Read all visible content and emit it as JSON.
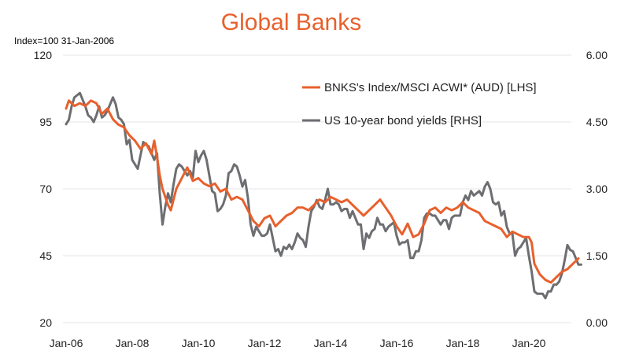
{
  "chart_data": {
    "type": "line",
    "title": "Global Banks",
    "note": "Index=100 31-Jan-2006",
    "colors": {
      "title": "#e8602c",
      "series_lhs": "#e8602c",
      "series_rhs": "#6d6e71",
      "grid": "#e6e6e6"
    },
    "grid": true,
    "legend_position": "top-right",
    "x_ticks": [
      "Jan-06",
      "Jan-08",
      "Jan-10",
      "Jan-12",
      "Jan-14",
      "Jan-16",
      "Jan-18",
      "Jan-20"
    ],
    "xlim": [
      "2006-01",
      "2021-08"
    ],
    "y_left": {
      "ylim": [
        20,
        120
      ],
      "ticks": [
        "20",
        "45",
        "70",
        "95",
        "120"
      ]
    },
    "y_right": {
      "ylim": [
        0,
        6
      ],
      "ticks": [
        "0.00",
        "1.50",
        "3.00",
        "4.50",
        "6.00"
      ]
    },
    "series": [
      {
        "name": "BNKS's Index/MSCI ACWI* (AUD) [LHS]",
        "axis": "left",
        "points": [
          [
            "2006-01",
            100
          ],
          [
            "2006-02",
            103
          ],
          [
            "2006-04",
            101
          ],
          [
            "2006-06",
            102
          ],
          [
            "2006-08",
            101
          ],
          [
            "2006-10",
            103
          ],
          [
            "2006-12",
            102
          ],
          [
            "2007-02",
            98
          ],
          [
            "2007-04",
            100
          ],
          [
            "2007-06",
            96
          ],
          [
            "2007-08",
            94
          ],
          [
            "2007-10",
            93
          ],
          [
            "2007-12",
            90
          ],
          [
            "2008-02",
            88
          ],
          [
            "2008-04",
            85
          ],
          [
            "2008-06",
            87
          ],
          [
            "2008-08",
            83
          ],
          [
            "2008-09",
            88
          ],
          [
            "2008-10",
            82
          ],
          [
            "2008-11",
            75
          ],
          [
            "2008-12",
            70
          ],
          [
            "2009-02",
            64
          ],
          [
            "2009-03",
            62
          ],
          [
            "2009-05",
            70
          ],
          [
            "2009-07",
            74
          ],
          [
            "2009-09",
            78
          ],
          [
            "2009-11",
            73
          ],
          [
            "2010-01",
            74
          ],
          [
            "2010-03",
            72
          ],
          [
            "2010-05",
            71
          ],
          [
            "2010-07",
            72
          ],
          [
            "2010-09",
            69
          ],
          [
            "2010-11",
            70
          ],
          [
            "2011-01",
            66
          ],
          [
            "2011-03",
            67
          ],
          [
            "2011-05",
            66
          ],
          [
            "2011-07",
            62
          ],
          [
            "2011-09",
            58
          ],
          [
            "2011-11",
            56
          ],
          [
            "2012-01",
            59
          ],
          [
            "2012-03",
            60
          ],
          [
            "2012-05",
            56
          ],
          [
            "2012-07",
            58
          ],
          [
            "2012-09",
            60
          ],
          [
            "2012-11",
            61
          ],
          [
            "2013-01",
            63
          ],
          [
            "2013-03",
            63
          ],
          [
            "2013-05",
            62
          ],
          [
            "2013-07",
            64
          ],
          [
            "2013-09",
            66
          ],
          [
            "2013-11",
            65
          ],
          [
            "2014-01",
            67
          ],
          [
            "2014-03",
            66
          ],
          [
            "2014-05",
            65
          ],
          [
            "2014-07",
            66
          ],
          [
            "2014-09",
            64
          ],
          [
            "2014-11",
            62
          ],
          [
            "2015-01",
            60
          ],
          [
            "2015-03",
            62
          ],
          [
            "2015-05",
            64
          ],
          [
            "2015-07",
            66
          ],
          [
            "2015-09",
            63
          ],
          [
            "2015-11",
            60
          ],
          [
            "2016-01",
            56
          ],
          [
            "2016-03",
            53
          ],
          [
            "2016-05",
            57
          ],
          [
            "2016-07",
            52
          ],
          [
            "2016-09",
            53
          ],
          [
            "2016-11",
            57
          ],
          [
            "2017-01",
            62
          ],
          [
            "2017-03",
            63
          ],
          [
            "2017-05",
            61
          ],
          [
            "2017-07",
            63
          ],
          [
            "2017-09",
            62
          ],
          [
            "2017-11",
            63
          ],
          [
            "2018-01",
            65
          ],
          [
            "2018-03",
            63
          ],
          [
            "2018-05",
            62
          ],
          [
            "2018-07",
            61
          ],
          [
            "2018-09",
            58
          ],
          [
            "2018-11",
            57
          ],
          [
            "2019-01",
            56
          ],
          [
            "2019-03",
            55
          ],
          [
            "2019-05",
            52
          ],
          [
            "2019-07",
            54
          ],
          [
            "2019-09",
            53
          ],
          [
            "2019-11",
            52
          ],
          [
            "2020-01",
            52
          ],
          [
            "2020-02",
            50
          ],
          [
            "2020-03",
            42
          ],
          [
            "2020-05",
            38
          ],
          [
            "2020-07",
            36
          ],
          [
            "2020-09",
            35
          ],
          [
            "2020-11",
            37
          ],
          [
            "2021-01",
            39
          ],
          [
            "2021-03",
            40
          ],
          [
            "2021-05",
            42
          ],
          [
            "2021-07",
            44
          ]
        ]
      },
      {
        "name": "US 10-year bond yields [RHS]",
        "axis": "right",
        "points": [
          [
            "2006-01",
            4.45
          ],
          [
            "2006-02",
            4.55
          ],
          [
            "2006-03",
            4.85
          ],
          [
            "2006-04",
            5.05
          ],
          [
            "2006-05",
            5.1
          ],
          [
            "2006-06",
            5.15
          ],
          [
            "2006-07",
            5.0
          ],
          [
            "2006-08",
            4.85
          ],
          [
            "2006-09",
            4.65
          ],
          [
            "2006-10",
            4.6
          ],
          [
            "2006-11",
            4.5
          ],
          [
            "2006-12",
            4.65
          ],
          [
            "2007-01",
            4.85
          ],
          [
            "2007-02",
            4.6
          ],
          [
            "2007-03",
            4.65
          ],
          [
            "2007-04",
            4.75
          ],
          [
            "2007-05",
            4.9
          ],
          [
            "2007-06",
            5.05
          ],
          [
            "2007-07",
            4.9
          ],
          [
            "2007-08",
            4.6
          ],
          [
            "2007-09",
            4.55
          ],
          [
            "2007-10",
            4.45
          ],
          [
            "2007-11",
            4.0
          ],
          [
            "2007-12",
            4.1
          ],
          [
            "2008-01",
            3.65
          ],
          [
            "2008-02",
            3.55
          ],
          [
            "2008-03",
            3.45
          ],
          [
            "2008-04",
            3.75
          ],
          [
            "2008-05",
            4.05
          ],
          [
            "2008-06",
            4.0
          ],
          [
            "2008-07",
            3.95
          ],
          [
            "2008-08",
            3.8
          ],
          [
            "2008-09",
            3.65
          ],
          [
            "2008-10",
            3.8
          ],
          [
            "2008-11",
            2.9
          ],
          [
            "2008-12",
            2.2
          ],
          [
            "2009-01",
            2.6
          ],
          [
            "2009-02",
            2.9
          ],
          [
            "2009-03",
            2.7
          ],
          [
            "2009-04",
            3.1
          ],
          [
            "2009-05",
            3.45
          ],
          [
            "2009-06",
            3.55
          ],
          [
            "2009-07",
            3.5
          ],
          [
            "2009-08",
            3.4
          ],
          [
            "2009-09",
            3.3
          ],
          [
            "2009-10",
            3.4
          ],
          [
            "2009-11",
            3.25
          ],
          [
            "2009-12",
            3.85
          ],
          [
            "2010-01",
            3.6
          ],
          [
            "2010-02",
            3.75
          ],
          [
            "2010-03",
            3.85
          ],
          [
            "2010-04",
            3.65
          ],
          [
            "2010-05",
            3.3
          ],
          [
            "2010-06",
            2.95
          ],
          [
            "2010-07",
            2.9
          ],
          [
            "2010-08",
            2.5
          ],
          [
            "2010-09",
            2.55
          ],
          [
            "2010-10",
            2.65
          ],
          [
            "2010-11",
            2.85
          ],
          [
            "2010-12",
            3.35
          ],
          [
            "2011-01",
            3.4
          ],
          [
            "2011-02",
            3.55
          ],
          [
            "2011-03",
            3.5
          ],
          [
            "2011-04",
            3.3
          ],
          [
            "2011-05",
            3.05
          ],
          [
            "2011-06",
            3.2
          ],
          [
            "2011-07",
            2.8
          ],
          [
            "2011-08",
            2.2
          ],
          [
            "2011-09",
            1.95
          ],
          [
            "2011-10",
            2.15
          ],
          [
            "2011-11",
            2.05
          ],
          [
            "2011-12",
            1.95
          ],
          [
            "2012-01",
            1.95
          ],
          [
            "2012-02",
            2.0
          ],
          [
            "2012-03",
            2.2
          ],
          [
            "2012-04",
            1.9
          ],
          [
            "2012-05",
            1.6
          ],
          [
            "2012-06",
            1.65
          ],
          [
            "2012-07",
            1.5
          ],
          [
            "2012-08",
            1.7
          ],
          [
            "2012-09",
            1.65
          ],
          [
            "2012-10",
            1.75
          ],
          [
            "2012-11",
            1.65
          ],
          [
            "2012-12",
            1.8
          ],
          [
            "2013-01",
            2.0
          ],
          [
            "2013-02",
            1.9
          ],
          [
            "2013-03",
            1.85
          ],
          [
            "2013-04",
            1.7
          ],
          [
            "2013-05",
            2.15
          ],
          [
            "2013-06",
            2.5
          ],
          [
            "2013-07",
            2.6
          ],
          [
            "2013-08",
            2.75
          ],
          [
            "2013-09",
            2.6
          ],
          [
            "2013-10",
            2.55
          ],
          [
            "2013-11",
            2.75
          ],
          [
            "2013-12",
            3.0
          ],
          [
            "2014-01",
            2.65
          ],
          [
            "2014-02",
            2.65
          ],
          [
            "2014-03",
            2.7
          ],
          [
            "2014-04",
            2.65
          ],
          [
            "2014-05",
            2.5
          ],
          [
            "2014-06",
            2.55
          ],
          [
            "2014-07",
            2.55
          ],
          [
            "2014-08",
            2.35
          ],
          [
            "2014-09",
            2.5
          ],
          [
            "2014-10",
            2.35
          ],
          [
            "2014-11",
            2.2
          ],
          [
            "2014-12",
            2.2
          ],
          [
            "2015-01",
            1.65
          ],
          [
            "2015-02",
            2.0
          ],
          [
            "2015-03",
            1.9
          ],
          [
            "2015-04",
            2.05
          ],
          [
            "2015-05",
            2.1
          ],
          [
            "2015-06",
            2.35
          ],
          [
            "2015-07",
            2.2
          ],
          [
            "2015-08",
            2.2
          ],
          [
            "2015-09",
            2.05
          ],
          [
            "2015-10",
            2.15
          ],
          [
            "2015-11",
            2.2
          ],
          [
            "2015-12",
            2.25
          ],
          [
            "2016-01",
            1.95
          ],
          [
            "2016-02",
            1.75
          ],
          [
            "2016-03",
            1.8
          ],
          [
            "2016-04",
            1.8
          ],
          [
            "2016-05",
            1.85
          ],
          [
            "2016-06",
            1.45
          ],
          [
            "2016-07",
            1.45
          ],
          [
            "2016-08",
            1.6
          ],
          [
            "2016-09",
            1.6
          ],
          [
            "2016-10",
            1.85
          ],
          [
            "2016-11",
            2.35
          ],
          [
            "2016-12",
            2.45
          ],
          [
            "2017-01",
            2.45
          ],
          [
            "2017-02",
            2.4
          ],
          [
            "2017-03",
            2.4
          ],
          [
            "2017-04",
            2.3
          ],
          [
            "2017-05",
            2.2
          ],
          [
            "2017-06",
            2.3
          ],
          [
            "2017-07",
            2.3
          ],
          [
            "2017-08",
            2.1
          ],
          [
            "2017-09",
            2.35
          ],
          [
            "2017-10",
            2.4
          ],
          [
            "2017-11",
            2.4
          ],
          [
            "2017-12",
            2.4
          ],
          [
            "2018-01",
            2.7
          ],
          [
            "2018-02",
            2.85
          ],
          [
            "2018-03",
            2.75
          ],
          [
            "2018-04",
            2.95
          ],
          [
            "2018-05",
            2.85
          ],
          [
            "2018-06",
            2.9
          ],
          [
            "2018-07",
            2.95
          ],
          [
            "2018-08",
            2.85
          ],
          [
            "2018-09",
            3.05
          ],
          [
            "2018-10",
            3.15
          ],
          [
            "2018-11",
            3.0
          ],
          [
            "2018-12",
            2.7
          ],
          [
            "2019-01",
            2.65
          ],
          [
            "2019-02",
            2.7
          ],
          [
            "2019-03",
            2.4
          ],
          [
            "2019-04",
            2.5
          ],
          [
            "2019-05",
            2.15
          ],
          [
            "2019-06",
            2.0
          ],
          [
            "2019-07",
            2.0
          ],
          [
            "2019-08",
            1.5
          ],
          [
            "2019-09",
            1.65
          ],
          [
            "2019-10",
            1.7
          ],
          [
            "2019-11",
            1.8
          ],
          [
            "2019-12",
            1.9
          ],
          [
            "2020-01",
            1.5
          ],
          [
            "2020-02",
            1.15
          ],
          [
            "2020-03",
            0.7
          ],
          [
            "2020-04",
            0.65
          ],
          [
            "2020-05",
            0.65
          ],
          [
            "2020-06",
            0.65
          ],
          [
            "2020-07",
            0.55
          ],
          [
            "2020-08",
            0.7
          ],
          [
            "2020-09",
            0.7
          ],
          [
            "2020-10",
            0.85
          ],
          [
            "2020-11",
            0.85
          ],
          [
            "2020-12",
            0.92
          ],
          [
            "2021-01",
            1.1
          ],
          [
            "2021-02",
            1.4
          ],
          [
            "2021-03",
            1.74
          ],
          [
            "2021-04",
            1.63
          ],
          [
            "2021-05",
            1.6
          ],
          [
            "2021-06",
            1.45
          ],
          [
            "2021-07",
            1.3
          ],
          [
            "2021-08",
            1.3
          ]
        ]
      }
    ]
  }
}
